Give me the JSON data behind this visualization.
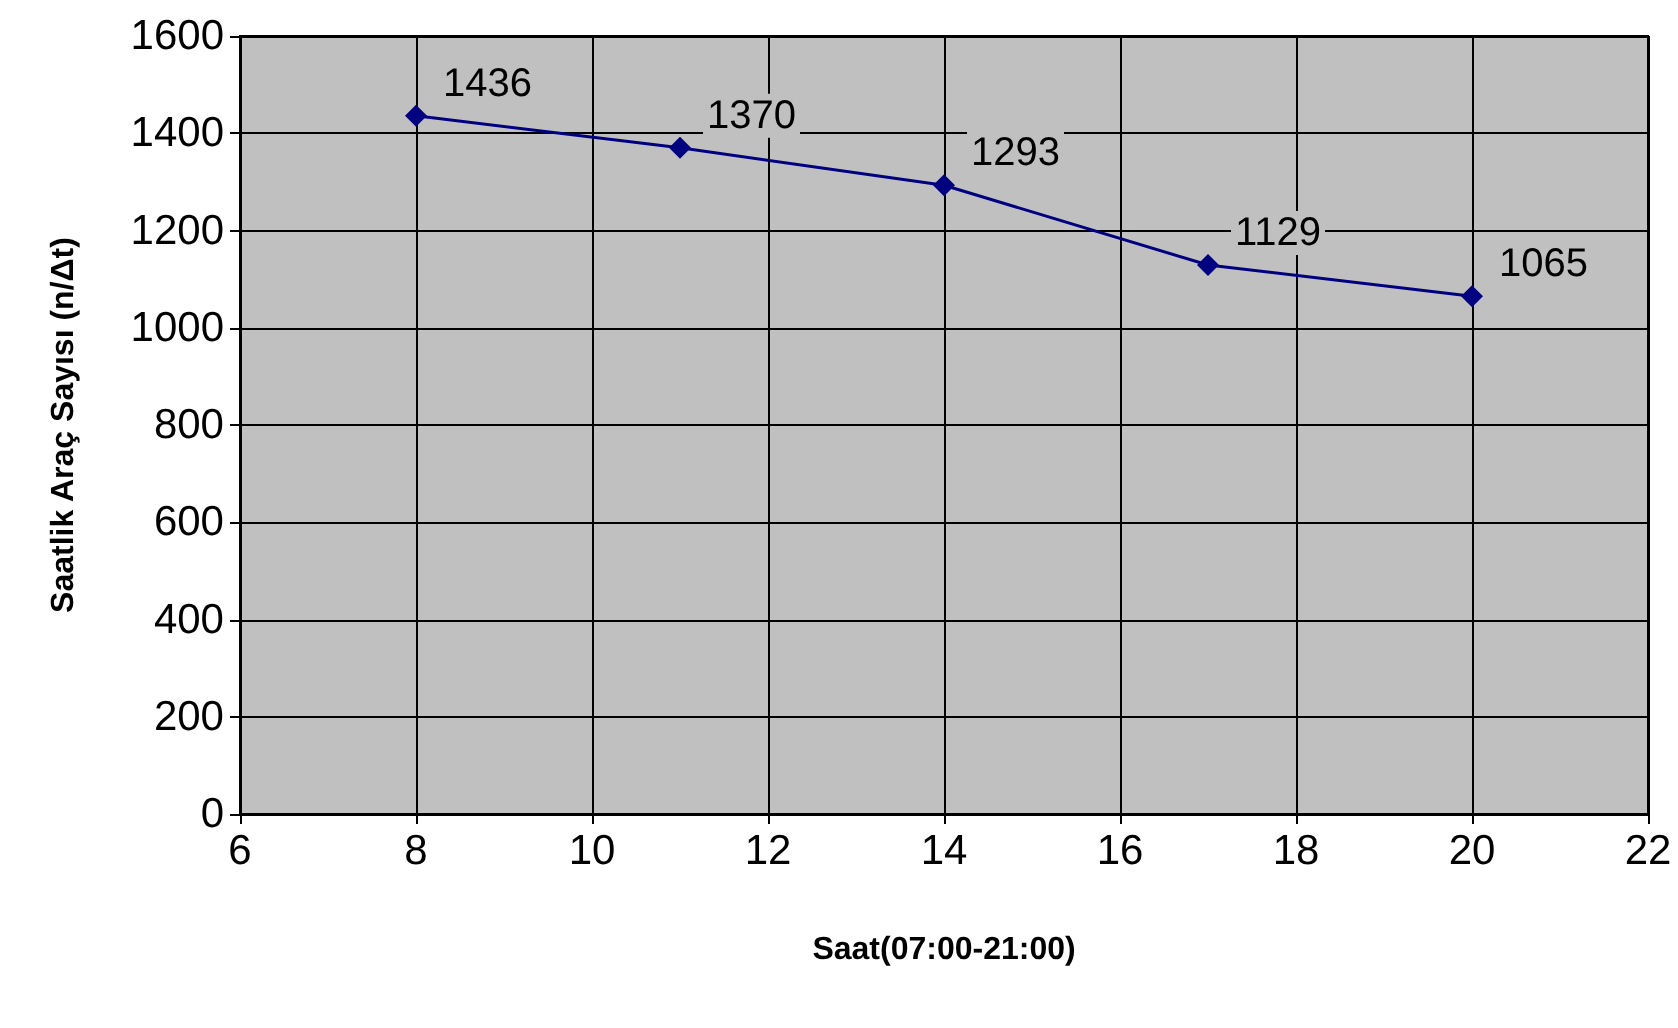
{
  "chart_data": {
    "type": "line",
    "xlabel": "Saat(07:00-21:00)",
    "ylabel": "Saatlik Araç Sayısı (n/Δt)",
    "x": [
      8,
      11,
      14,
      17,
      20
    ],
    "series": [
      {
        "color": "#000080",
        "values": [
          1436,
          1370,
          1293,
          1129,
          1065
        ]
      }
    ],
    "xlim": [
      6,
      22
    ],
    "xticks": [
      6,
      8,
      10,
      12,
      14,
      16,
      18,
      20,
      22
    ],
    "ylim": [
      0,
      1600
    ],
    "yticks": [
      0,
      200,
      400,
      600,
      800,
      1000,
      1200,
      1400,
      1600
    ],
    "grid": true,
    "marker": "diamond",
    "line_style": "solid",
    "data_labels": true
  }
}
